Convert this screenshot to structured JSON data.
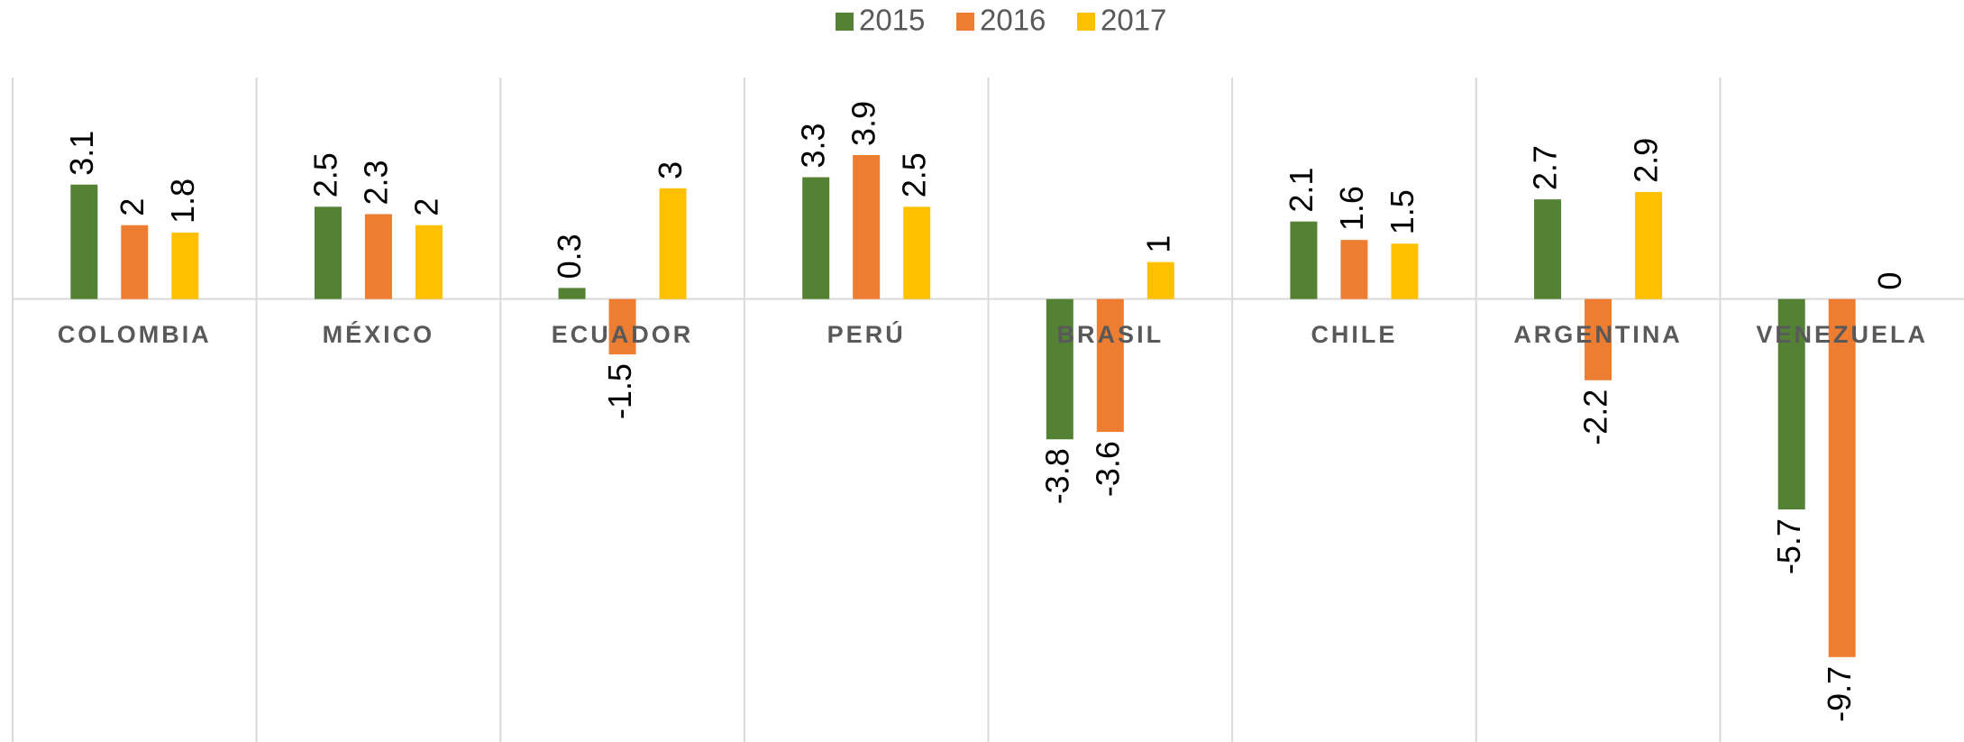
{
  "chart_data": {
    "type": "bar",
    "categories": [
      "COLOMBIA",
      "MÉXICO",
      "ECUADOR",
      "PERÚ",
      "BRASIL",
      "CHILE",
      "ARGENTINA",
      "VENEZUELA"
    ],
    "series": [
      {
        "name": "2015",
        "color": "#548235",
        "values": [
          3.1,
          2.5,
          0.3,
          3.3,
          -3.8,
          2.1,
          2.7,
          -5.7
        ]
      },
      {
        "name": "2016",
        "color": "#ED7D31",
        "values": [
          2,
          2.3,
          -1.5,
          3.9,
          -3.6,
          1.6,
          -2.2,
          -9.7
        ]
      },
      {
        "name": "2017",
        "color": "#FFC000",
        "values": [
          1.8,
          2,
          3,
          2.5,
          1,
          1.5,
          2.9,
          0
        ]
      }
    ],
    "ylim": [
      -12,
      6
    ],
    "legend": "top"
  }
}
